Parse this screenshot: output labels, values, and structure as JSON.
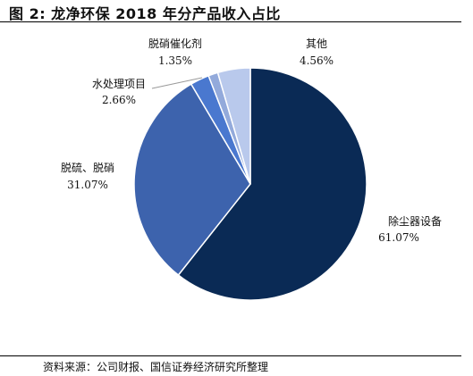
{
  "header": {
    "title": "图 2:  龙净环保 2018 年分产品收入占比"
  },
  "footer": {
    "source": "资料来源：公司财报、国信证券经济研究所整理"
  },
  "chart_data": {
    "type": "pie",
    "slices": [
      {
        "name": "除尘器设备",
        "value": 61.07,
        "label": "61.07%",
        "color": "#0a2a55"
      },
      {
        "name": "脱硫、脱硝",
        "value": 31.07,
        "label": "31.07%",
        "color": "#3d63ad"
      },
      {
        "name": "水处理项目",
        "value": 2.66,
        "label": "2.66%",
        "color": "#4a78cf"
      },
      {
        "name": "脱硝催化剂",
        "value": 1.35,
        "label": "1.35%",
        "color": "#93aadb"
      },
      {
        "name": "其他",
        "value": 4.56,
        "label": "4.56%",
        "color": "#b9c9ec"
      }
    ]
  }
}
